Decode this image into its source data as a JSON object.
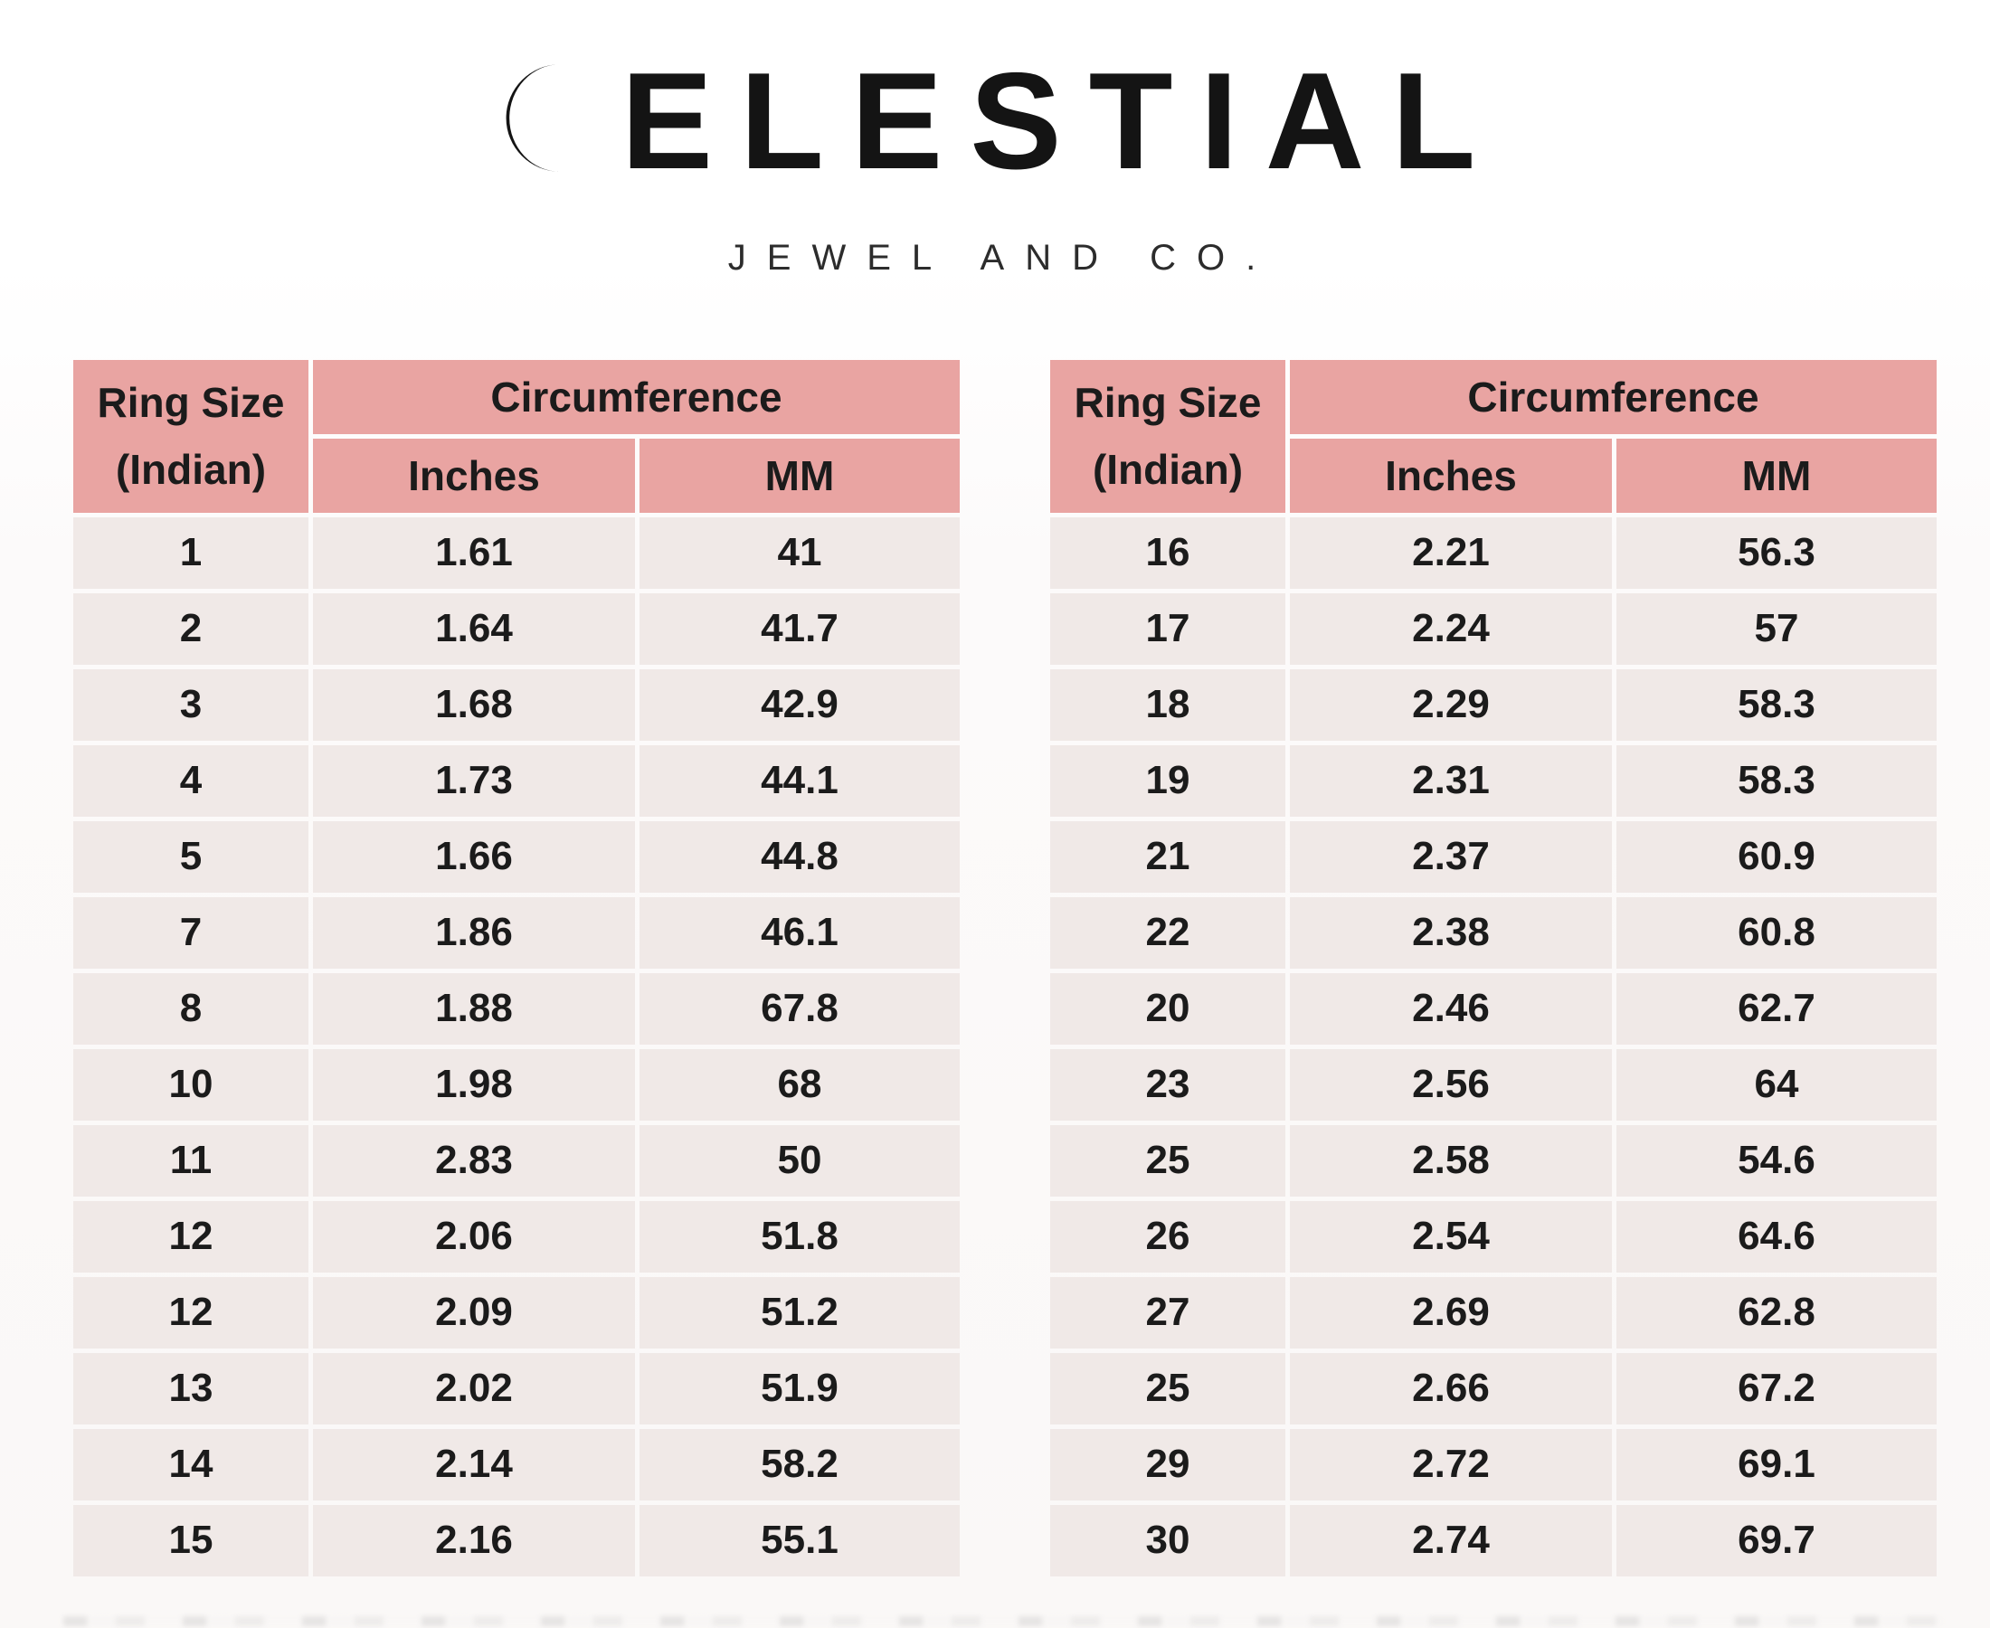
{
  "logo": {
    "brand_name": "CELESTIAL",
    "brand_display": "ELESTIAL",
    "subtitle": "JEWEL AND CO.",
    "icon": "crescent-sun-icon"
  },
  "colors": {
    "header_bg": "#e9a4a2",
    "row_bg": "#f0e9e7",
    "text": "#1b1b1b",
    "logo_ink": "#141414"
  },
  "tables": [
    {
      "header": {
        "ring_size": "Ring Size",
        "ring_size_sub": "(Indian)",
        "circumference": "Circumference",
        "inches": "Inches",
        "mm": "MM"
      },
      "rows": [
        [
          "1",
          "1.61",
          "41"
        ],
        [
          "2",
          "1.64",
          "41.7"
        ],
        [
          "3",
          "1.68",
          "42.9"
        ],
        [
          "4",
          "1.73",
          "44.1"
        ],
        [
          "5",
          "1.66",
          "44.8"
        ],
        [
          "7",
          "1.86",
          "46.1"
        ],
        [
          "8",
          "1.88",
          "67.8"
        ],
        [
          "10",
          "1.98",
          "68"
        ],
        [
          "11",
          "2.83",
          "50"
        ],
        [
          "12",
          "2.06",
          "51.8"
        ],
        [
          "12",
          "2.09",
          "51.2"
        ],
        [
          "13",
          "2.02",
          "51.9"
        ],
        [
          "14",
          "2.14",
          "58.2"
        ],
        [
          "15",
          "2.16",
          "55.1"
        ]
      ]
    },
    {
      "header": {
        "ring_size": "Ring Size",
        "ring_size_sub": "(Indian)",
        "circumference": "Circumference",
        "inches": "Inches",
        "mm": "MM"
      },
      "rows": [
        [
          "16",
          "2.21",
          "56.3"
        ],
        [
          "17",
          "2.24",
          "57"
        ],
        [
          "18",
          "2.29",
          "58.3"
        ],
        [
          "19",
          "2.31",
          "58.3"
        ],
        [
          "21",
          "2.37",
          "60.9"
        ],
        [
          "22",
          "2.38",
          "60.8"
        ],
        [
          "20",
          "2.46",
          "62.7"
        ],
        [
          "23",
          "2.56",
          "64"
        ],
        [
          "25",
          "2.58",
          "54.6"
        ],
        [
          "26",
          "2.54",
          "64.6"
        ],
        [
          "27",
          "2.69",
          "62.8"
        ],
        [
          "25",
          "2.66",
          "67.2"
        ],
        [
          "29",
          "2.72",
          "69.1"
        ],
        [
          "30",
          "2.74",
          "69.7"
        ]
      ]
    }
  ]
}
